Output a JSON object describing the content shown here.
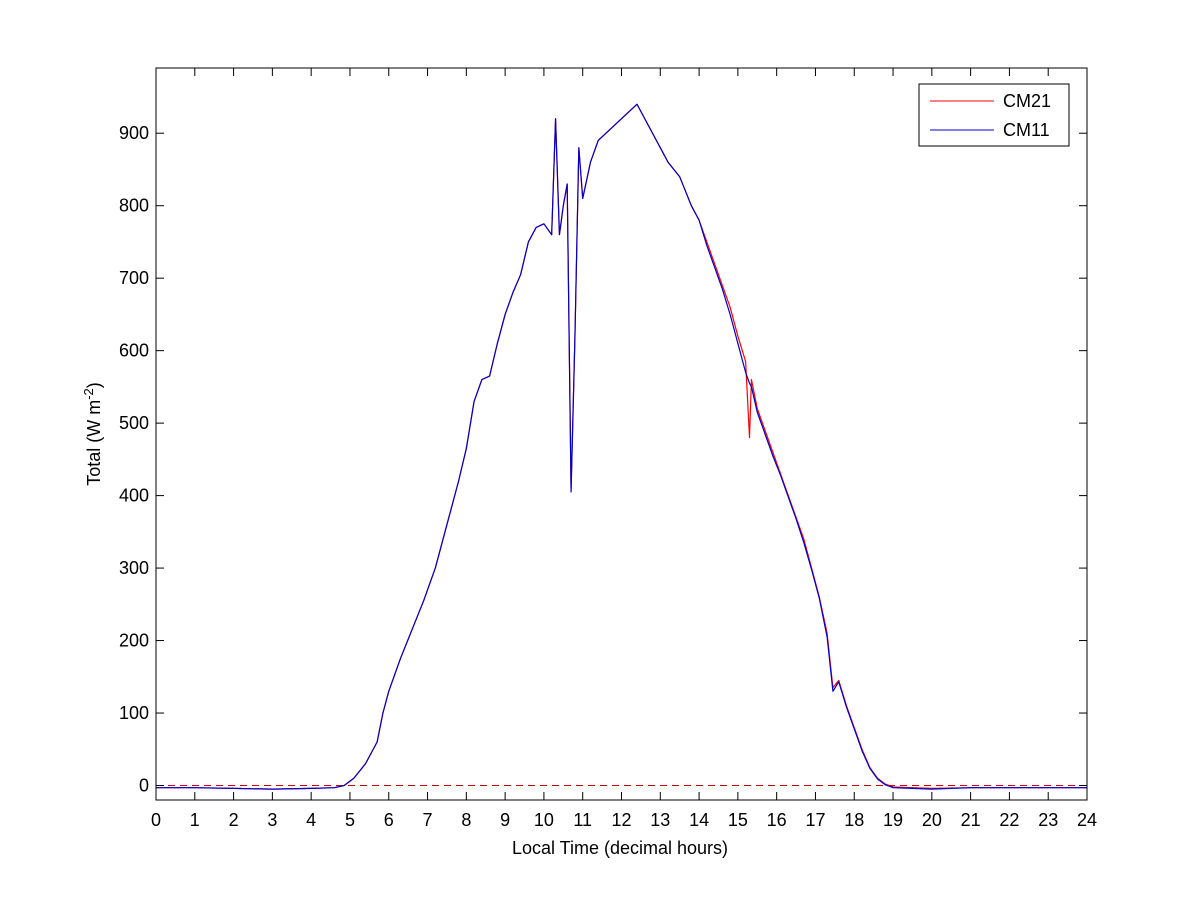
{
  "chart_data": {
    "type": "line",
    "title": "",
    "xlabel": "Local Time (decimal hours)",
    "ylabel_main": "Total (W m",
    "ylabel_sup": "-2",
    "ylabel_close": ")",
    "xlim": [
      0,
      24
    ],
    "ylim": [
      -20,
      990
    ],
    "x_ticks": [
      0,
      1,
      2,
      3,
      4,
      5,
      6,
      7,
      8,
      9,
      10,
      11,
      12,
      13,
      14,
      15,
      16,
      17,
      18,
      19,
      20,
      21,
      22,
      23,
      24
    ],
    "y_ticks": [
      0,
      100,
      200,
      300,
      400,
      500,
      600,
      700,
      800,
      900
    ],
    "grid": false,
    "legend_position": "top-right",
    "reference_line": {
      "y": 0,
      "style": "dashed",
      "color": "#cc0000"
    },
    "series": [
      {
        "name": "CM21",
        "color": "#ff0000",
        "points": [
          [
            0,
            -3
          ],
          [
            1,
            -3
          ],
          [
            2,
            -4
          ],
          [
            3,
            -5
          ],
          [
            4,
            -4
          ],
          [
            4.6,
            -3
          ],
          [
            4.85,
            0
          ],
          [
            5.1,
            10
          ],
          [
            5.4,
            30
          ],
          [
            5.7,
            60
          ],
          [
            5.85,
            100
          ],
          [
            6,
            130
          ],
          [
            6.3,
            175
          ],
          [
            6.6,
            215
          ],
          [
            6.9,
            255
          ],
          [
            7.2,
            300
          ],
          [
            7.5,
            360
          ],
          [
            7.8,
            420
          ],
          [
            8.0,
            465
          ],
          [
            8.2,
            530
          ],
          [
            8.4,
            560
          ],
          [
            8.6,
            565
          ],
          [
            8.8,
            610
          ],
          [
            9.0,
            650
          ],
          [
            9.2,
            680
          ],
          [
            9.4,
            705
          ],
          [
            9.6,
            750
          ],
          [
            9.8,
            770
          ],
          [
            10.0,
            775
          ],
          [
            10.2,
            760
          ],
          [
            10.3,
            920
          ],
          [
            10.4,
            760
          ],
          [
            10.5,
            800
          ],
          [
            10.6,
            830
          ],
          [
            10.7,
            410
          ],
          [
            10.8,
            620
          ],
          [
            10.9,
            880
          ],
          [
            11.0,
            810
          ],
          [
            11.2,
            860
          ],
          [
            11.4,
            890
          ],
          [
            11.6,
            900
          ],
          [
            11.8,
            910
          ],
          [
            12.0,
            920
          ],
          [
            12.2,
            930
          ],
          [
            12.4,
            940
          ],
          [
            12.6,
            920
          ],
          [
            12.8,
            900
          ],
          [
            13.0,
            880
          ],
          [
            13.2,
            860
          ],
          [
            13.5,
            840
          ],
          [
            13.8,
            800
          ],
          [
            14.0,
            780
          ],
          [
            14.2,
            750
          ],
          [
            14.4,
            720
          ],
          [
            14.6,
            690
          ],
          [
            14.8,
            660
          ],
          [
            15.0,
            620
          ],
          [
            15.2,
            585
          ],
          [
            15.3,
            480
          ],
          [
            15.35,
            560
          ],
          [
            15.5,
            520
          ],
          [
            15.7,
            490
          ],
          [
            15.9,
            460
          ],
          [
            16.1,
            430
          ],
          [
            16.3,
            400
          ],
          [
            16.5,
            370
          ],
          [
            16.7,
            340
          ],
          [
            16.9,
            300
          ],
          [
            17.1,
            260
          ],
          [
            17.3,
            210
          ],
          [
            17.45,
            135
          ],
          [
            17.6,
            145
          ],
          [
            17.8,
            110
          ],
          [
            18.0,
            80
          ],
          [
            18.2,
            50
          ],
          [
            18.4,
            25
          ],
          [
            18.6,
            10
          ],
          [
            18.8,
            2
          ],
          [
            19.0,
            -2
          ],
          [
            19.5,
            -3
          ],
          [
            20,
            -4
          ],
          [
            21,
            -3
          ],
          [
            22,
            -3
          ],
          [
            23,
            -3
          ],
          [
            24,
            -3
          ]
        ]
      },
      {
        "name": "CM11",
        "color": "#0000cc",
        "points": [
          [
            0,
            -3
          ],
          [
            1,
            -3
          ],
          [
            2,
            -4
          ],
          [
            3,
            -5
          ],
          [
            4,
            -4
          ],
          [
            4.6,
            -3
          ],
          [
            4.85,
            0
          ],
          [
            5.1,
            10
          ],
          [
            5.4,
            30
          ],
          [
            5.7,
            60
          ],
          [
            5.85,
            100
          ],
          [
            6,
            130
          ],
          [
            6.3,
            175
          ],
          [
            6.6,
            215
          ],
          [
            6.9,
            255
          ],
          [
            7.2,
            300
          ],
          [
            7.5,
            360
          ],
          [
            7.8,
            420
          ],
          [
            8.0,
            465
          ],
          [
            8.2,
            530
          ],
          [
            8.4,
            560
          ],
          [
            8.6,
            565
          ],
          [
            8.8,
            610
          ],
          [
            9.0,
            650
          ],
          [
            9.2,
            680
          ],
          [
            9.4,
            705
          ],
          [
            9.6,
            750
          ],
          [
            9.8,
            770
          ],
          [
            10.0,
            775
          ],
          [
            10.2,
            760
          ],
          [
            10.3,
            920
          ],
          [
            10.4,
            760
          ],
          [
            10.5,
            800
          ],
          [
            10.6,
            830
          ],
          [
            10.7,
            405
          ],
          [
            10.8,
            620
          ],
          [
            10.9,
            880
          ],
          [
            11.0,
            810
          ],
          [
            11.2,
            860
          ],
          [
            11.4,
            890
          ],
          [
            11.6,
            900
          ],
          [
            11.8,
            910
          ],
          [
            12.0,
            920
          ],
          [
            12.2,
            930
          ],
          [
            12.4,
            940
          ],
          [
            12.6,
            920
          ],
          [
            12.8,
            900
          ],
          [
            13.0,
            880
          ],
          [
            13.2,
            860
          ],
          [
            13.5,
            840
          ],
          [
            13.8,
            800
          ],
          [
            14.0,
            780
          ],
          [
            14.2,
            745
          ],
          [
            14.4,
            715
          ],
          [
            14.6,
            685
          ],
          [
            14.8,
            650
          ],
          [
            15.0,
            610
          ],
          [
            15.2,
            570
          ],
          [
            15.3,
            555
          ],
          [
            15.35,
            550
          ],
          [
            15.5,
            515
          ],
          [
            15.7,
            485
          ],
          [
            15.9,
            455
          ],
          [
            16.1,
            428
          ],
          [
            16.3,
            398
          ],
          [
            16.5,
            368
          ],
          [
            16.7,
            335
          ],
          [
            16.9,
            298
          ],
          [
            17.1,
            258
          ],
          [
            17.3,
            205
          ],
          [
            17.45,
            130
          ],
          [
            17.6,
            143
          ],
          [
            17.8,
            108
          ],
          [
            18.0,
            78
          ],
          [
            18.2,
            48
          ],
          [
            18.4,
            24
          ],
          [
            18.6,
            9
          ],
          [
            18.8,
            1
          ],
          [
            19.0,
            -3
          ],
          [
            19.5,
            -4
          ],
          [
            20,
            -5
          ],
          [
            21,
            -3
          ],
          [
            22,
            -3
          ],
          [
            23,
            -3
          ],
          [
            24,
            -3
          ]
        ]
      }
    ]
  }
}
